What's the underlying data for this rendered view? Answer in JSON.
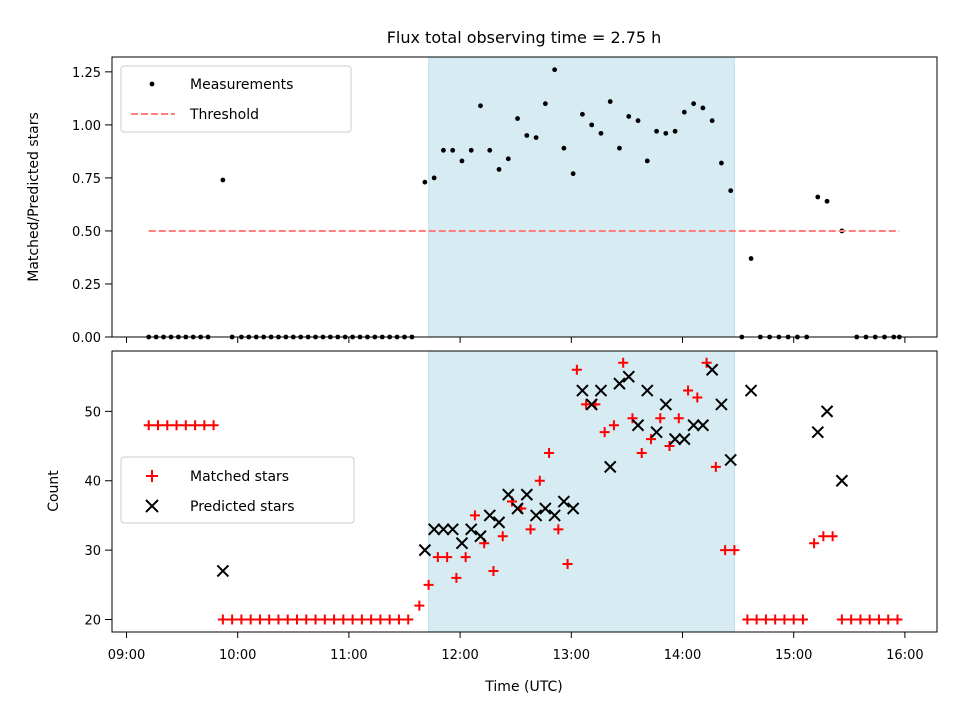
{
  "chart_data": {
    "type": "scatter",
    "title": "Flux total observing time = 2.75 h",
    "xlabel": "Time (UTC)",
    "x_ticks": [
      "09:00",
      "10:00",
      "11:00",
      "12:00",
      "13:00",
      "14:00",
      "15:00",
      "16:00"
    ],
    "shaded_interval": [
      "11:43",
      "14:28"
    ],
    "shade_color": "#add8e6",
    "panels": [
      {
        "ylabel": "Matched/Predicted stars",
        "ylim": [
          0,
          1.32
        ],
        "y_ticks": [
          "0.00",
          "0.25",
          "0.50",
          "0.75",
          "1.00",
          "1.25"
        ],
        "y_tick_values": [
          0,
          0.25,
          0.5,
          0.75,
          1.0,
          1.25
        ],
        "legend": {
          "position": "upper left",
          "entries": [
            "Measurements",
            "Threshold"
          ]
        },
        "series": [
          {
            "name": "Measurements",
            "marker": "dot",
            "color": "#000000",
            "points": [
              [
                "09:12",
                0
              ],
              [
                "09:16",
                0
              ],
              [
                "09:20",
                0
              ],
              [
                "09:24",
                0
              ],
              [
                "09:28",
                0
              ],
              [
                "09:32",
                0
              ],
              [
                "09:36",
                0
              ],
              [
                "09:40",
                0
              ],
              [
                "09:44",
                0
              ],
              [
                "09:52",
                0.74
              ],
              [
                "09:57",
                0
              ],
              [
                "10:02",
                0
              ],
              [
                "10:06",
                0
              ],
              [
                "10:10",
                0
              ],
              [
                "10:14",
                0
              ],
              [
                "10:18",
                0
              ],
              [
                "10:22",
                0
              ],
              [
                "10:26",
                0
              ],
              [
                "10:30",
                0
              ],
              [
                "10:34",
                0
              ],
              [
                "10:38",
                0
              ],
              [
                "10:42",
                0
              ],
              [
                "10:46",
                0
              ],
              [
                "10:50",
                0
              ],
              [
                "10:54",
                0
              ],
              [
                "10:58",
                0
              ],
              [
                "11:02",
                0
              ],
              [
                "11:06",
                0
              ],
              [
                "11:10",
                0
              ],
              [
                "11:14",
                0
              ],
              [
                "11:18",
                0
              ],
              [
                "11:22",
                0
              ],
              [
                "11:26",
                0
              ],
              [
                "11:30",
                0
              ],
              [
                "11:34",
                0
              ],
              [
                "11:41",
                0.73
              ],
              [
                "11:46",
                0.75
              ],
              [
                "11:51",
                0.88
              ],
              [
                "11:56",
                0.88
              ],
              [
                "12:01",
                0.83
              ],
              [
                "12:06",
                0.88
              ],
              [
                "12:11",
                1.09
              ],
              [
                "12:16",
                0.88
              ],
              [
                "12:21",
                0.79
              ],
              [
                "12:26",
                0.84
              ],
              [
                "12:31",
                1.03
              ],
              [
                "12:36",
                0.95
              ],
              [
                "12:41",
                0.94
              ],
              [
                "12:46",
                1.1
              ],
              [
                "12:51",
                1.26
              ],
              [
                "12:56",
                0.89
              ],
              [
                "13:01",
                0.77
              ],
              [
                "13:06",
                1.05
              ],
              [
                "13:11",
                1.0
              ],
              [
                "13:16",
                0.96
              ],
              [
                "13:21",
                1.11
              ],
              [
                "13:26",
                0.89
              ],
              [
                "13:31",
                1.04
              ],
              [
                "13:36",
                1.02
              ],
              [
                "13:41",
                0.83
              ],
              [
                "13:46",
                0.97
              ],
              [
                "13:51",
                0.96
              ],
              [
                "13:56",
                0.97
              ],
              [
                "14:01",
                1.06
              ],
              [
                "14:06",
                1.1
              ],
              [
                "14:11",
                1.08
              ],
              [
                "14:16",
                1.02
              ],
              [
                "14:21",
                0.82
              ],
              [
                "14:26",
                0.69
              ],
              [
                "14:32",
                0
              ],
              [
                "14:37",
                0.37
              ],
              [
                "14:42",
                0
              ],
              [
                "14:47",
                0
              ],
              [
                "14:52",
                0
              ],
              [
                "14:57",
                0
              ],
              [
                "15:02",
                0
              ],
              [
                "15:07",
                0
              ],
              [
                "15:13",
                0.66
              ],
              [
                "15:18",
                0.64
              ],
              [
                "15:26",
                0.5
              ],
              [
                "15:34",
                0
              ],
              [
                "15:39",
                0
              ],
              [
                "15:44",
                0
              ],
              [
                "15:49",
                0
              ],
              [
                "15:54",
                0
              ],
              [
                "15:57",
                0
              ]
            ]
          },
          {
            "name": "Threshold",
            "marker": "dashed-line",
            "color": "#ff7f7f",
            "points": [
              [
                "09:12",
                0.5
              ],
              [
                "15:57",
                0.5
              ]
            ]
          }
        ]
      },
      {
        "ylabel": "Count",
        "ylim": [
          18.2,
          58.7
        ],
        "y_ticks": [
          "20",
          "30",
          "40",
          "50"
        ],
        "y_tick_values": [
          20,
          30,
          40,
          50
        ],
        "legend": {
          "position": "center left",
          "entries": [
            "Matched stars",
            "Predicted stars"
          ]
        },
        "series": [
          {
            "name": "Matched stars",
            "marker": "plus",
            "color": "#ff0000",
            "points": [
              [
                "09:12",
                48
              ],
              [
                "09:17",
                48
              ],
              [
                "09:22",
                48
              ],
              [
                "09:27",
                48
              ],
              [
                "09:32",
                48
              ],
              [
                "09:37",
                48
              ],
              [
                "09:42",
                48
              ],
              [
                "09:47",
                48
              ],
              [
                "09:52",
                20
              ],
              [
                "09:57",
                20
              ],
              [
                "10:02",
                20
              ],
              [
                "10:07",
                20
              ],
              [
                "10:12",
                20
              ],
              [
                "10:17",
                20
              ],
              [
                "10:22",
                20
              ],
              [
                "10:27",
                20
              ],
              [
                "10:32",
                20
              ],
              [
                "10:37",
                20
              ],
              [
                "10:42",
                20
              ],
              [
                "10:47",
                20
              ],
              [
                "10:52",
                20
              ],
              [
                "10:57",
                20
              ],
              [
                "11:02",
                20
              ],
              [
                "11:07",
                20
              ],
              [
                "11:12",
                20
              ],
              [
                "11:17",
                20
              ],
              [
                "11:22",
                20
              ],
              [
                "11:27",
                20
              ],
              [
                "11:32",
                20
              ],
              [
                "11:38",
                22
              ],
              [
                "11:43",
                25
              ],
              [
                "11:48",
                29
              ],
              [
                "11:53",
                29
              ],
              [
                "11:58",
                26
              ],
              [
                "12:03",
                29
              ],
              [
                "12:08",
                35
              ],
              [
                "12:13",
                31
              ],
              [
                "12:18",
                27
              ],
              [
                "12:23",
                32
              ],
              [
                "12:28",
                37
              ],
              [
                "12:33",
                36
              ],
              [
                "12:38",
                33
              ],
              [
                "12:43",
                40
              ],
              [
                "12:48",
                44
              ],
              [
                "12:53",
                33
              ],
              [
                "12:58",
                28
              ],
              [
                "13:03",
                56
              ],
              [
                "13:08",
                51
              ],
              [
                "13:13",
                51
              ],
              [
                "13:18",
                47
              ],
              [
                "13:23",
                48
              ],
              [
                "13:28",
                57
              ],
              [
                "13:33",
                49
              ],
              [
                "13:38",
                44
              ],
              [
                "13:43",
                46
              ],
              [
                "13:48",
                49
              ],
              [
                "13:53",
                45
              ],
              [
                "13:58",
                49
              ],
              [
                "14:03",
                53
              ],
              [
                "14:08",
                52
              ],
              [
                "14:13",
                57
              ],
              [
                "14:18",
                42
              ],
              [
                "14:23",
                30
              ],
              [
                "14:28",
                30
              ],
              [
                "14:35",
                20
              ],
              [
                "14:40",
                20
              ],
              [
                "14:45",
                20
              ],
              [
                "14:50",
                20
              ],
              [
                "14:55",
                20
              ],
              [
                "15:00",
                20
              ],
              [
                "15:05",
                20
              ],
              [
                "15:11",
                31
              ],
              [
                "15:16",
                32
              ],
              [
                "15:21",
                32
              ],
              [
                "15:26",
                20
              ],
              [
                "15:31",
                20
              ],
              [
                "15:36",
                20
              ],
              [
                "15:41",
                20
              ],
              [
                "15:46",
                20
              ],
              [
                "15:51",
                20
              ],
              [
                "15:56",
                20
              ]
            ]
          },
          {
            "name": "Predicted stars",
            "marker": "x",
            "color": "#000000",
            "points": [
              [
                "09:52",
                27
              ],
              [
                "11:41",
                30
              ],
              [
                "11:46",
                33
              ],
              [
                "11:51",
                33
              ],
              [
                "11:56",
                33
              ],
              [
                "12:01",
                31
              ],
              [
                "12:06",
                33
              ],
              [
                "12:11",
                32
              ],
              [
                "12:16",
                35
              ],
              [
                "12:21",
                34
              ],
              [
                "12:26",
                38
              ],
              [
                "12:31",
                36
              ],
              [
                "12:36",
                38
              ],
              [
                "12:41",
                35
              ],
              [
                "12:46",
                36
              ],
              [
                "12:51",
                35
              ],
              [
                "12:56",
                37
              ],
              [
                "13:01",
                36
              ],
              [
                "13:06",
                53
              ],
              [
                "13:11",
                51
              ],
              [
                "13:16",
                53
              ],
              [
                "13:21",
                42
              ],
              [
                "13:26",
                54
              ],
              [
                "13:31",
                55
              ],
              [
                "13:36",
                48
              ],
              [
                "13:41",
                53
              ],
              [
                "13:46",
                47
              ],
              [
                "13:51",
                51
              ],
              [
                "13:56",
                46
              ],
              [
                "14:01",
                46
              ],
              [
                "14:06",
                48
              ],
              [
                "14:11",
                48
              ],
              [
                "14:16",
                56
              ],
              [
                "14:21",
                51
              ],
              [
                "14:26",
                43
              ],
              [
                "14:37",
                53
              ],
              [
                "15:13",
                47
              ],
              [
                "15:18",
                50
              ],
              [
                "15:26",
                40
              ]
            ]
          }
        ]
      }
    ]
  }
}
